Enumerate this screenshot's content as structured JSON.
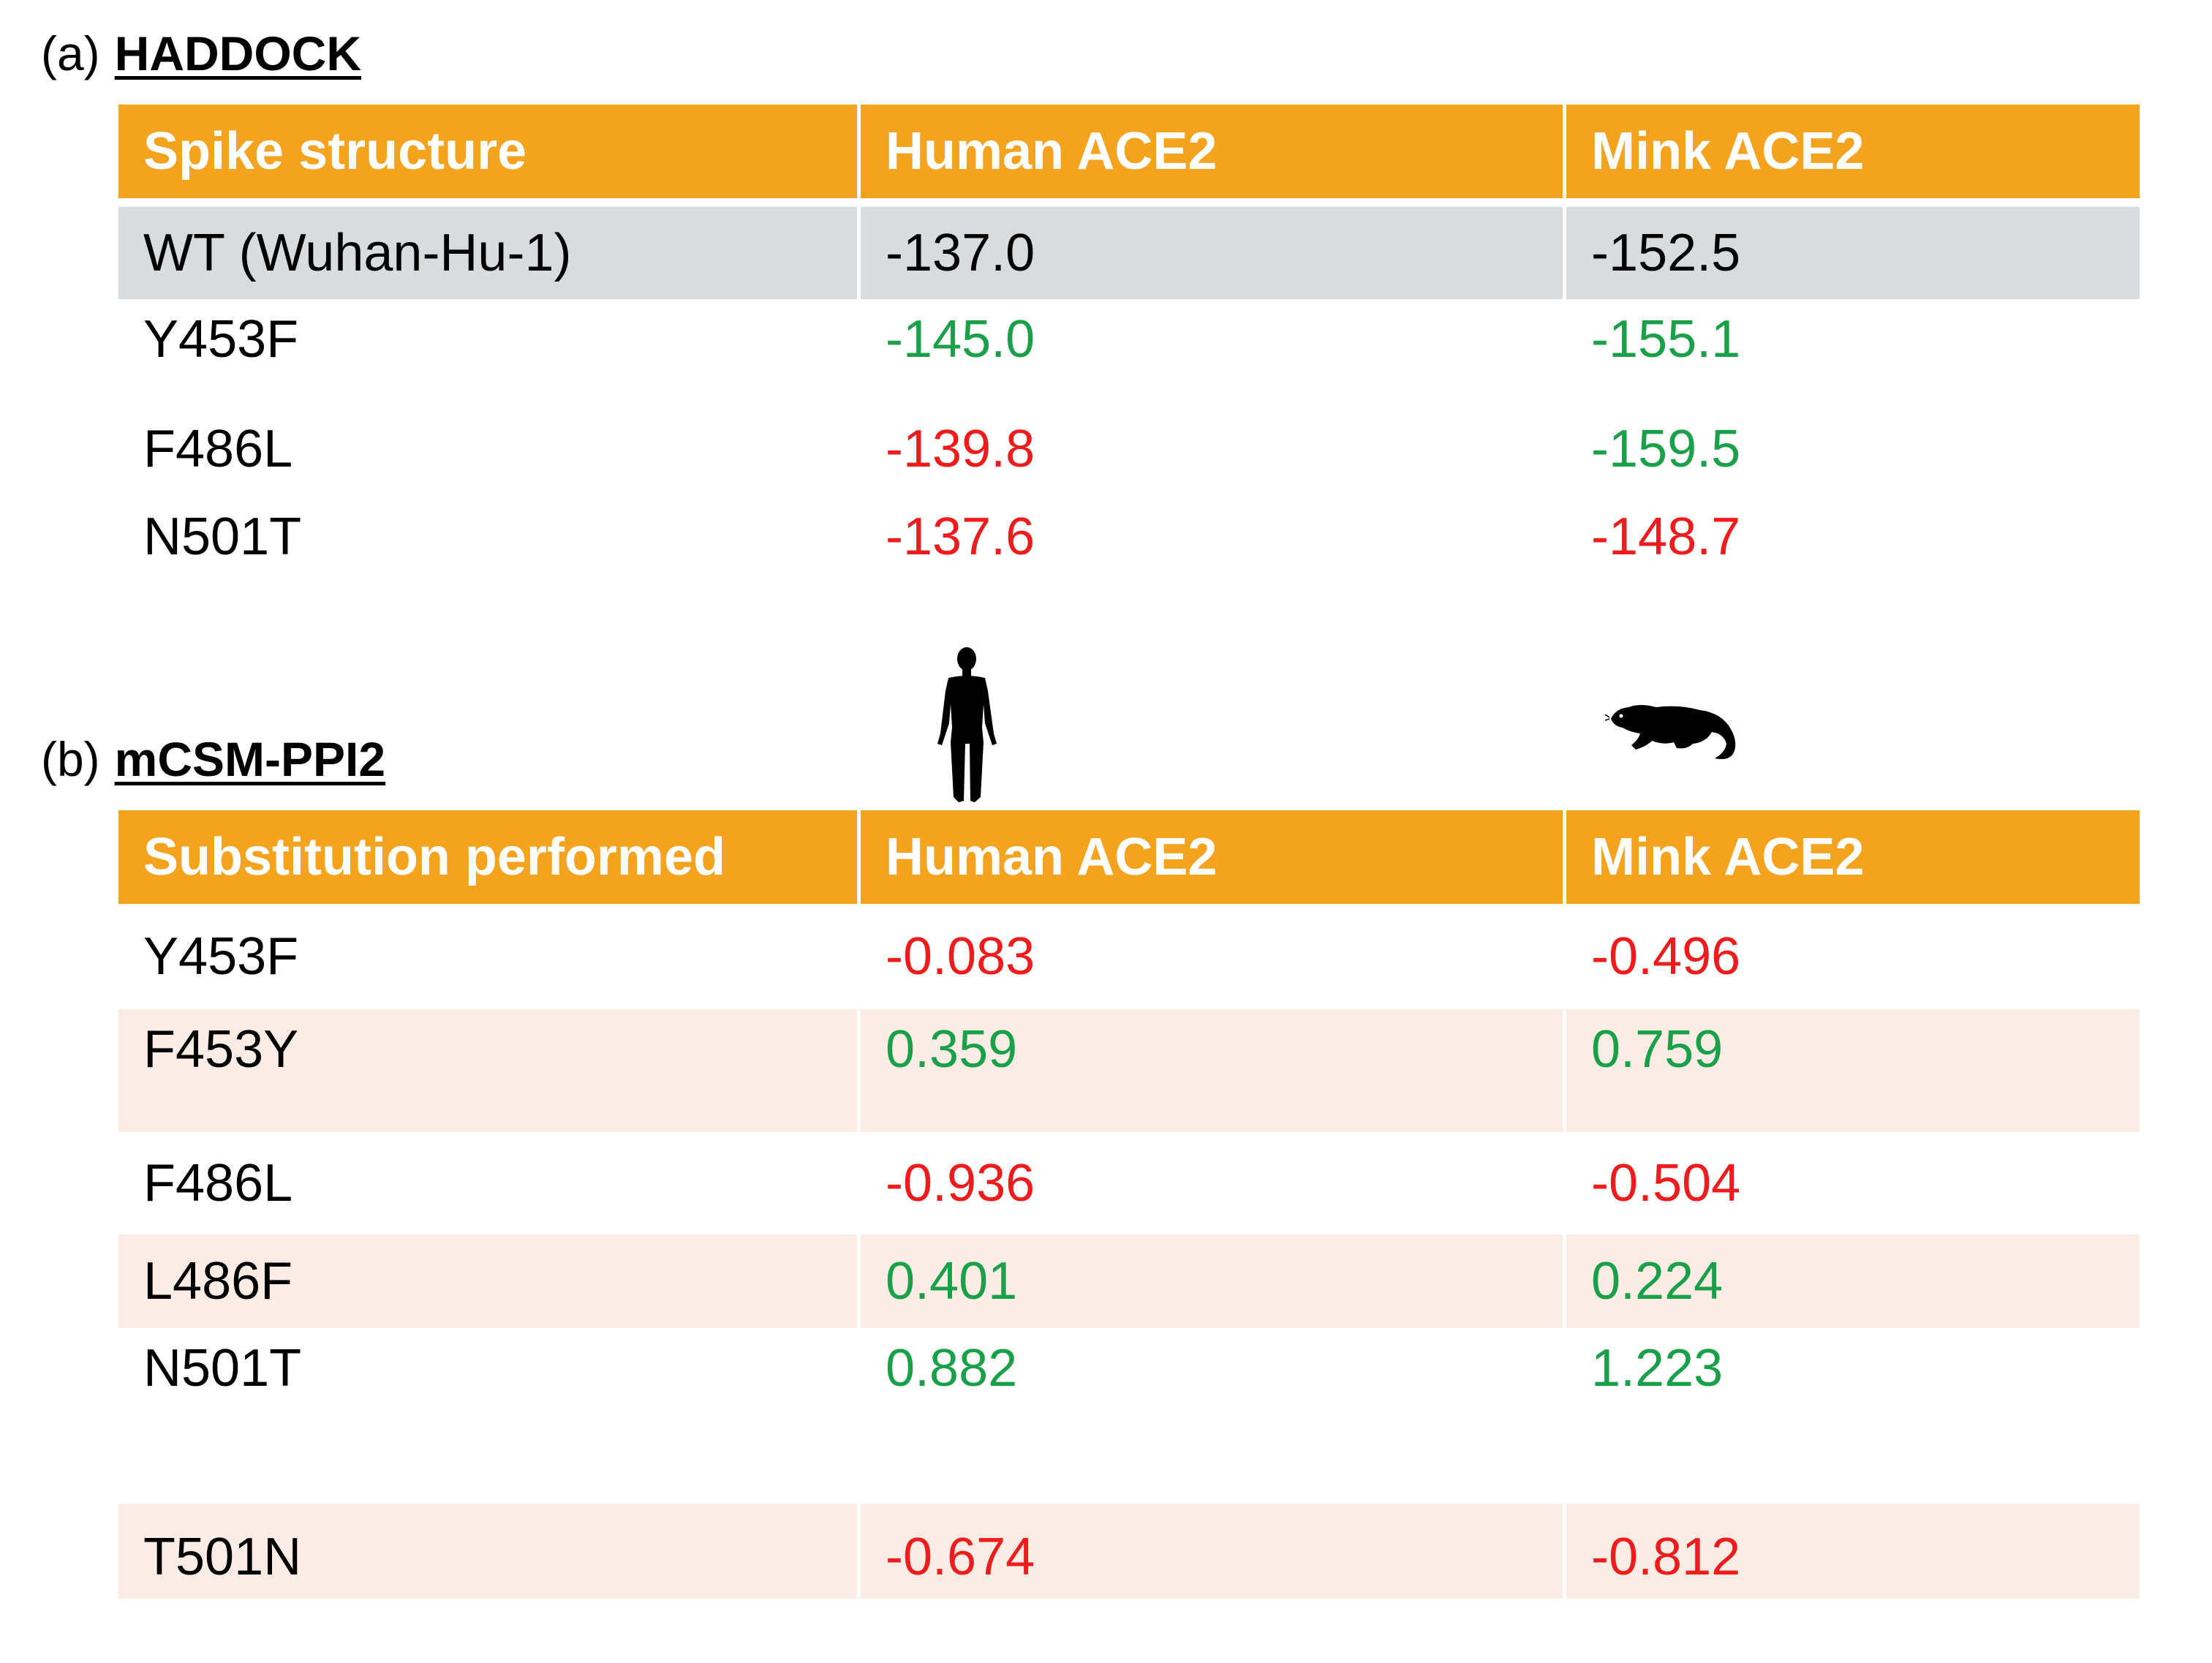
{
  "section_a": {
    "letter": "(a)",
    "name": "HADDOCK",
    "headers": [
      "Spike structure",
      "Human ACE2",
      "Mink ACE2"
    ],
    "rows": [
      {
        "label": "WT (Wuhan-Hu-1)",
        "human": "-137.0",
        "mink": "-152.5",
        "human_color": "neutral",
        "mink_color": "neutral"
      },
      {
        "label": "Y453F",
        "human": "-145.0",
        "mink": "-155.1",
        "human_color": "green",
        "mink_color": "green"
      },
      {
        "label": "F486L",
        "human": "-139.8",
        "mink": "-159.5",
        "human_color": "red",
        "mink_color": "green"
      },
      {
        "label": "N501T",
        "human": "-137.6",
        "mink": "-148.7",
        "human_color": "red",
        "mink_color": "red"
      }
    ]
  },
  "section_b": {
    "letter": "(b)",
    "name": "mCSM-PPI2",
    "headers": [
      "Substitution performed",
      "Human ACE2",
      "Mink ACE2"
    ],
    "rows": [
      {
        "label": "Y453F",
        "human": "-0.083",
        "mink": "-0.496",
        "human_color": "red",
        "mink_color": "red"
      },
      {
        "label": "F453Y",
        "human": "0.359",
        "mink": "0.759",
        "human_color": "green",
        "mink_color": "green"
      },
      {
        "label": "F486L",
        "human": "-0.936",
        "mink": "-0.504",
        "human_color": "red",
        "mink_color": "red"
      },
      {
        "label": "L486F",
        "human": "0.401",
        "mink": "0.224",
        "human_color": "green",
        "mink_color": "green"
      },
      {
        "label": "N501T",
        "human": "0.882",
        "mink": "1.223",
        "human_color": "green",
        "mink_color": "green"
      },
      {
        "label": "T501N",
        "human": "-0.674",
        "mink": "-0.812",
        "human_color": "red",
        "mink_color": "red"
      }
    ]
  },
  "icons": {
    "human": "human-silhouette-icon",
    "mink": "mink-silhouette-icon"
  },
  "colors": {
    "header": "#f4a31f",
    "wt_row": "#d9dcdf",
    "shaded_row": "#fbede5",
    "green": "#1aa048",
    "red": "#ee1c1c"
  }
}
